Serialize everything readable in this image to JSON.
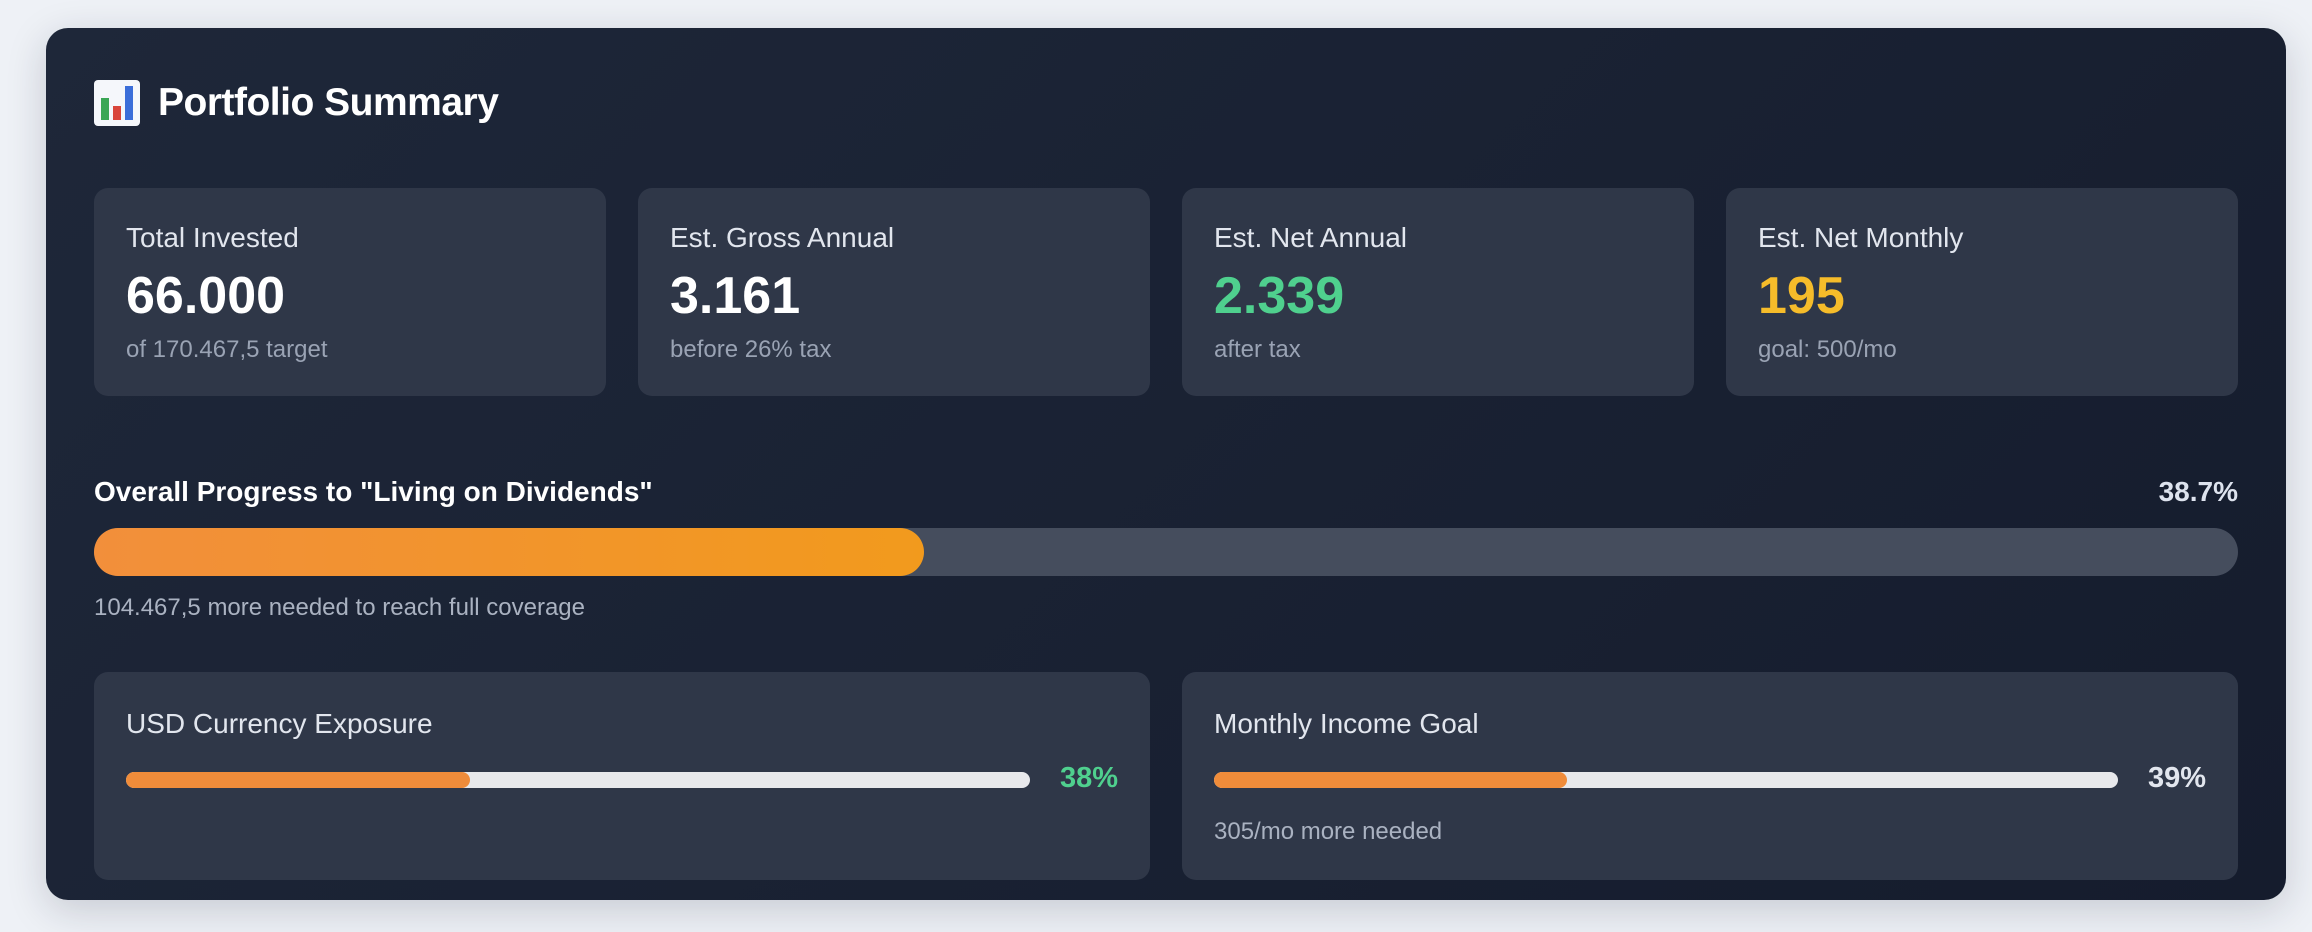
{
  "header": {
    "title": "Portfolio Summary",
    "icon": "bar-chart-icon"
  },
  "cards": [
    {
      "label": "Total Invested",
      "value": "66.000",
      "sub": "of 170.467,5 target",
      "color": "#ffffff"
    },
    {
      "label": "Est. Gross Annual",
      "value": "3.161",
      "sub": "before 26% tax",
      "color": "#ffffff"
    },
    {
      "label": "Est. Net Annual",
      "value": "2.339",
      "sub": "after tax",
      "color": "#4fd08e"
    },
    {
      "label": "Est. Net Monthly",
      "value": "195",
      "sub": "goal: 500/mo",
      "color": "#f6bc2a"
    }
  ],
  "overall": {
    "label": "Overall Progress to \"Living on Dividends\"",
    "percent_text": "38.7%",
    "percent": 38.7,
    "note": "104.467,5 more needed to reach full coverage"
  },
  "currency": {
    "label": "USD Currency Exposure",
    "percent_text": "38%",
    "percent": 38,
    "pct_color": "#4fd08e"
  },
  "income_goal": {
    "label": "Monthly Income Goal",
    "percent_text": "39%",
    "percent": 39,
    "pct_color": "#e2e6ee",
    "note": "305/mo more needed"
  }
}
